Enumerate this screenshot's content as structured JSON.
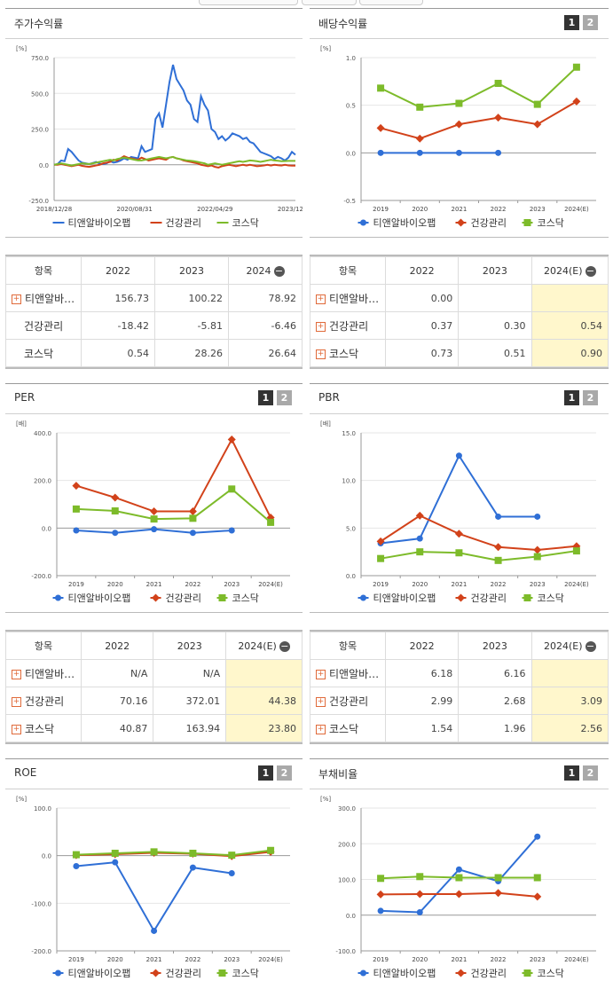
{
  "colors": {
    "c1": "#2f6fd6",
    "c2": "#d2421a",
    "c3": "#7dbb2a"
  },
  "legend": [
    "티앤알바이오팹",
    "건강관리",
    "코스닥"
  ],
  "tabs": [
    "1",
    "2"
  ],
  "panels": {
    "stock": {
      "title": "주가수익률",
      "unit": "[%]"
    },
    "dividend": {
      "title": "배당수익률",
      "unit": "[%]"
    },
    "per": {
      "title": "PER",
      "unit": "[배]"
    },
    "pbr": {
      "title": "PBR",
      "unit": "[배]"
    },
    "roe": {
      "title": "ROE",
      "unit": "[%]"
    },
    "debt": {
      "title": "부채비율",
      "unit": "[%]"
    }
  },
  "table_stock": {
    "header": [
      "항목",
      "2022",
      "2023",
      "2024"
    ],
    "rows": [
      {
        "name": "티앤알바…",
        "v": [
          "156.73",
          "100.22",
          "78.92"
        ]
      },
      {
        "name": "건강관리",
        "v": [
          "-18.42",
          "-5.81",
          "-6.46"
        ]
      },
      {
        "name": "코스닥",
        "v": [
          "0.54",
          "28.26",
          "26.64"
        ]
      }
    ]
  },
  "table_div": {
    "header": [
      "항목",
      "2022",
      "2023",
      "2024(E)"
    ],
    "rows": [
      {
        "name": "티앤알바…",
        "v": [
          "0.00",
          "",
          ""
        ]
      },
      {
        "name": "건강관리",
        "v": [
          "0.37",
          "0.30",
          "0.54"
        ]
      },
      {
        "name": "코스닥",
        "v": [
          "0.73",
          "0.51",
          "0.90"
        ]
      }
    ]
  },
  "table_per": {
    "header": [
      "항목",
      "2022",
      "2023",
      "2024(E)"
    ],
    "rows": [
      {
        "name": "티앤알바…",
        "v": [
          "N/A",
          "N/A",
          ""
        ]
      },
      {
        "name": "건강관리",
        "v": [
          "70.16",
          "372.01",
          "44.38"
        ]
      },
      {
        "name": "코스닥",
        "v": [
          "40.87",
          "163.94",
          "23.80"
        ]
      }
    ]
  },
  "table_pbr": {
    "header": [
      "항목",
      "2022",
      "2023",
      "2024(E)"
    ],
    "rows": [
      {
        "name": "티앤알바…",
        "v": [
          "6.18",
          "6.16",
          ""
        ]
      },
      {
        "name": "건강관리",
        "v": [
          "2.99",
          "2.68",
          "3.09"
        ]
      },
      {
        "name": "코스닥",
        "v": [
          "1.54",
          "1.96",
          "2.56"
        ]
      }
    ]
  },
  "chart_data": [
    {
      "id": "stock",
      "type": "line",
      "x_ticks": [
        "2018/12/28",
        "2020/08/31",
        "2022/04/29",
        "2023/12/28"
      ],
      "y_ticks": [
        "750.0",
        "500.0",
        "250.0",
        "0.0",
        "-250.0"
      ],
      "ylim": [
        -250,
        750
      ],
      "series": [
        {
          "name": "티앤알바이오팹",
          "values": [
            0,
            5,
            30,
            25,
            110,
            90,
            60,
            30,
            15,
            10,
            5,
            12,
            20,
            8,
            5,
            10,
            25,
            15,
            20,
            30,
            45,
            35,
            55,
            50,
            45,
            130,
            90,
            100,
            110,
            320,
            360,
            260,
            420,
            580,
            700,
            600,
            560,
            520,
            450,
            420,
            320,
            300,
            480,
            420,
            380,
            250,
            230,
            180,
            200,
            170,
            190,
            220,
            210,
            200,
            180,
            190,
            160,
            150,
            120,
            90,
            80,
            70,
            60,
            40,
            55,
            45,
            30,
            50,
            90,
            70
          ]
        },
        {
          "name": "건강관리",
          "values": [
            0,
            0,
            5,
            0,
            -5,
            -10,
            -5,
            0,
            -8,
            -12,
            -15,
            -10,
            -5,
            0,
            10,
            15,
            20,
            35,
            30,
            45,
            60,
            50,
            45,
            40,
            35,
            50,
            40,
            30,
            35,
            40,
            45,
            40,
            35,
            50,
            55,
            45,
            40,
            30,
            25,
            20,
            15,
            10,
            0,
            -5,
            -10,
            -5,
            -15,
            -20,
            -10,
            -5,
            0,
            -5,
            -10,
            -5,
            0,
            -5,
            0,
            -5,
            -10,
            -8,
            -5,
            0,
            -5,
            0,
            -3,
            -5,
            0,
            -5,
            -6,
            -6
          ]
        },
        {
          "name": "코스닥",
          "values": [
            0,
            5,
            10,
            5,
            0,
            -5,
            0,
            5,
            10,
            8,
            5,
            10,
            15,
            20,
            25,
            30,
            35,
            30,
            40,
            45,
            50,
            45,
            40,
            35,
            30,
            30,
            35,
            40,
            45,
            50,
            55,
            50,
            45,
            50,
            55,
            45,
            40,
            35,
            30,
            28,
            25,
            20,
            15,
            10,
            0,
            5,
            10,
            5,
            0,
            5,
            10,
            15,
            20,
            25,
            20,
            25,
            30,
            28,
            25,
            20,
            25,
            30,
            35,
            30,
            28,
            25,
            26,
            27,
            27,
            27
          ]
        }
      ]
    },
    {
      "id": "dividend",
      "type": "line",
      "categories": [
        "2019",
        "2020",
        "2021",
        "2022",
        "2023",
        "2024(E)"
      ],
      "y_ticks": [
        "1.0",
        "0.5",
        "0.0",
        "-0.5"
      ],
      "ylim": [
        -0.5,
        1.0
      ],
      "series": [
        {
          "name": "티앤알바이오팹",
          "values": [
            0,
            0,
            0,
            0,
            null,
            null
          ]
        },
        {
          "name": "건강관리",
          "values": [
            0.26,
            0.15,
            0.3,
            0.37,
            0.3,
            0.54
          ]
        },
        {
          "name": "코스닥",
          "values": [
            0.68,
            0.48,
            0.52,
            0.73,
            0.51,
            0.9
          ]
        }
      ]
    },
    {
      "id": "per",
      "type": "line",
      "categories": [
        "2019",
        "2020",
        "2021",
        "2022",
        "2023",
        "2024(E)"
      ],
      "y_ticks": [
        "400.0",
        "200.0",
        "0.0",
        "-200.0"
      ],
      "ylim": [
        -200,
        400
      ],
      "series": [
        {
          "name": "티앤알바이오팹",
          "values": [
            -10,
            -20,
            -5,
            -20,
            -10,
            null
          ]
        },
        {
          "name": "건강관리",
          "values": [
            178,
            128,
            70,
            70,
            372,
            44
          ]
        },
        {
          "name": "코스닥",
          "values": [
            80,
            72,
            38,
            41,
            164,
            24
          ]
        }
      ]
    },
    {
      "id": "pbr",
      "type": "line",
      "categories": [
        "2019",
        "2020",
        "2021",
        "2022",
        "2023",
        "2024(E)"
      ],
      "y_ticks": [
        "15.0",
        "10.0",
        "5.0",
        "0.0"
      ],
      "ylim": [
        0,
        15
      ],
      "series": [
        {
          "name": "티앤알바이오팹",
          "values": [
            3.4,
            3.9,
            12.6,
            6.2,
            6.2,
            null
          ]
        },
        {
          "name": "건강관리",
          "values": [
            3.6,
            6.3,
            4.4,
            3.0,
            2.7,
            3.1
          ]
        },
        {
          "name": "코스닥",
          "values": [
            1.8,
            2.5,
            2.4,
            1.6,
            2.0,
            2.6
          ]
        }
      ]
    },
    {
      "id": "roe",
      "type": "line",
      "categories": [
        "2019",
        "2020",
        "2021",
        "2022",
        "2023",
        "2024(E)"
      ],
      "y_ticks": [
        "100.0",
        "0.0",
        "-100.0",
        "-200.0"
      ],
      "ylim": [
        -200,
        100
      ],
      "series": [
        {
          "name": "티앤알바이오팹",
          "values": [
            -22,
            -14,
            -158,
            -25,
            -37,
            null
          ]
        },
        {
          "name": "건강관리",
          "values": [
            1,
            3,
            6,
            4,
            -1,
            8
          ]
        },
        {
          "name": "코스닥",
          "values": [
            2,
            5,
            8,
            5,
            1,
            11
          ]
        }
      ]
    },
    {
      "id": "debt",
      "type": "line",
      "categories": [
        "2019",
        "2020",
        "2021",
        "2022",
        "2023",
        "2024(E)"
      ],
      "y_ticks": [
        "300.0",
        "200.0",
        "100.0",
        "0.0",
        "-100.0"
      ],
      "ylim": [
        -100,
        300
      ],
      "series": [
        {
          "name": "티앤알바이오팹",
          "values": [
            12,
            8,
            128,
            95,
            220,
            null
          ]
        },
        {
          "name": "건강관리",
          "values": [
            58,
            59,
            59,
            62,
            52,
            null
          ]
        },
        {
          "name": "코스닥",
          "values": [
            103,
            108,
            105,
            105,
            105,
            null
          ]
        }
      ]
    }
  ]
}
